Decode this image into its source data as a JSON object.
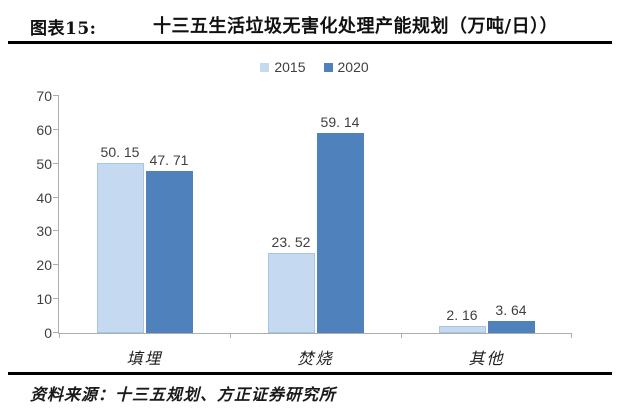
{
  "header": {
    "figure_label": "图表15:",
    "title": "十三五生活垃圾无害化处理产能规划（万吨/日））"
  },
  "legend": [
    {
      "label": "2015",
      "color": "#C5D9F1"
    },
    {
      "label": "2020",
      "color": "#4F81BD"
    }
  ],
  "footer": {
    "source": "资料来源：十三五规划、方正证券研究所"
  },
  "chart_data": {
    "type": "bar",
    "title": "十三五生活垃圾无害化处理产能规划（万吨/日））",
    "categories": [
      "填埋",
      "焚烧",
      "其他"
    ],
    "series": [
      {
        "name": "2015",
        "color": "#C5D9F1",
        "values": [
          50.15,
          23.52,
          2.16
        ],
        "labels": [
          "50. 15",
          "23. 52",
          "2. 16"
        ]
      },
      {
        "name": "2020",
        "color": "#4F81BD",
        "values": [
          47.71,
          59.14,
          3.64
        ],
        "labels": [
          "47. 71",
          "59. 14",
          "3. 64"
        ]
      }
    ],
    "xlabel": "",
    "ylabel": "",
    "ylim": [
      0,
      70
    ],
    "yticks": [
      0,
      10,
      20,
      30,
      40,
      50,
      60,
      70
    ],
    "grid": false,
    "legend_position": "top-center",
    "axis_color": "#adadad",
    "text_color": "#404040"
  }
}
